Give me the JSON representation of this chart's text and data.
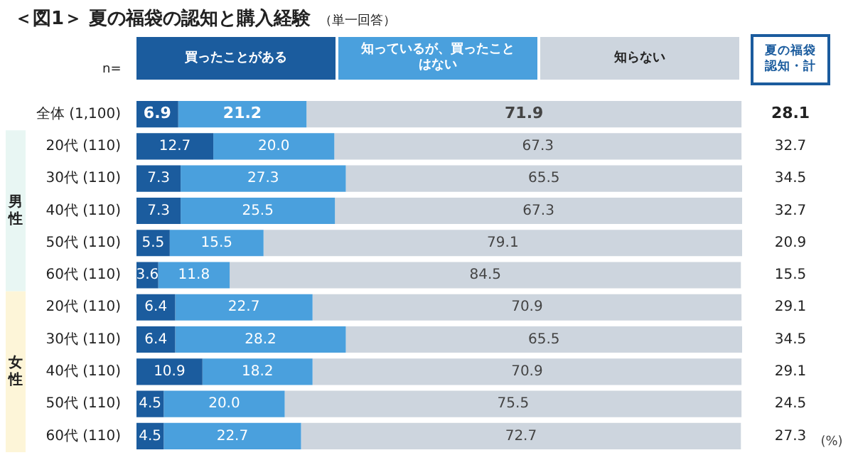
{
  "chart_data": {
    "type": "bar",
    "orientation": "horizontal",
    "stacked": true,
    "title": "＜図1＞ 夏の福袋の認知と購入経験",
    "subtitle": "（単一回答）",
    "categories": [
      "全体 (1,100)",
      "20代 (110)",
      "30代 (110)",
      "40代 (110)",
      "50代 (110)",
      "60代 (110)",
      "20代 (110)",
      "30代 (110)",
      "40代 (110)",
      "50代 (110)",
      "60代 (110)"
    ],
    "series": [
      {
        "name": "買ったことがある",
        "color": "#1b5c9e",
        "values": [
          6.9,
          12.7,
          7.3,
          7.3,
          5.5,
          3.6,
          6.4,
          6.4,
          10.9,
          4.5,
          4.5
        ],
        "value_labels": [
          "6.9",
          "12.7",
          "7.3",
          "7.3",
          "5.5",
          "3.6",
          "6.4",
          "6.4",
          "10.9",
          "4.5",
          "4.5"
        ]
      },
      {
        "name": "知っているが、買ったことはない",
        "color": "#4aa0dd",
        "values": [
          21.2,
          20.0,
          27.3,
          25.5,
          15.5,
          11.8,
          22.7,
          28.2,
          18.2,
          20.0,
          22.7
        ],
        "value_labels": [
          "21.2",
          "20.0",
          "27.3",
          "25.5",
          "15.5",
          "11.8",
          "22.7",
          "28.2",
          "18.2",
          "20.0",
          "22.7"
        ]
      },
      {
        "name": "知らない",
        "color": "#cdd5de",
        "values": [
          71.9,
          67.3,
          65.5,
          67.3,
          79.1,
          84.5,
          70.9,
          65.5,
          70.9,
          75.5,
          72.7
        ],
        "value_labels": [
          "71.9",
          "67.3",
          "65.5",
          "67.3",
          "79.1",
          "84.5",
          "70.9",
          "65.5",
          "70.9",
          "75.5",
          "72.7"
        ]
      }
    ],
    "annotations": [
      "n=",
      "夏の福袋認知・計",
      "男性",
      "女性",
      "(%)",
      "28.1",
      "32.7",
      "34.5",
      "32.7",
      "20.9",
      "15.5",
      "29.1",
      "34.5",
      "29.1",
      "24.5",
      "27.3"
    ],
    "legend": "top",
    "grid": false
  }
}
